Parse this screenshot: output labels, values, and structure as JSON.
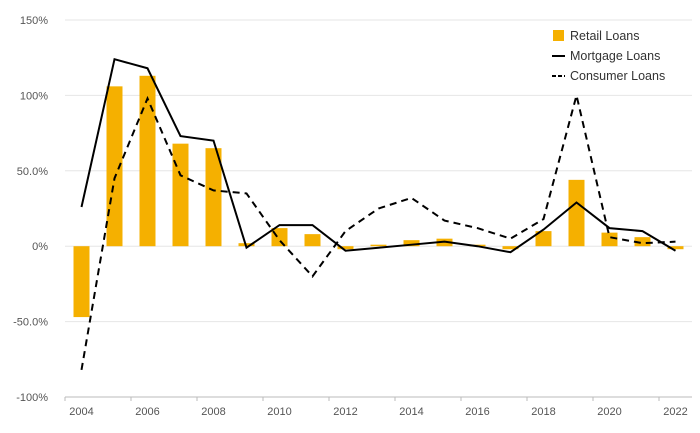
{
  "chart_data": {
    "type": "bar+line",
    "title": "",
    "xlabel": "",
    "ylabel": "",
    "ylim": [
      -100,
      150
    ],
    "y_ticks": [
      -100,
      -50,
      0,
      50,
      100,
      150
    ],
    "y_tick_labels": [
      "-100%",
      "-50.0%",
      "0%",
      "50.0%",
      "100%",
      "150%"
    ],
    "x": [
      2004,
      2005,
      2006,
      2007,
      2008,
      2009,
      2010,
      2011,
      2012,
      2013,
      2014,
      2015,
      2016,
      2017,
      2018,
      2019,
      2020,
      2021,
      2022
    ],
    "x_tick_labels": [
      "2004",
      "2006",
      "2008",
      "2010",
      "2012",
      "2014",
      "2016",
      "2018",
      "2020",
      "2022"
    ],
    "legend_position": "top-right",
    "series": [
      {
        "name": "Retail Loans",
        "kind": "bar",
        "color": "#f5b000",
        "values": [
          -47,
          106,
          113,
          68,
          65,
          2,
          12,
          8,
          -2,
          1,
          4,
          5,
          1,
          -2,
          10,
          44,
          9,
          6,
          -2
        ]
      },
      {
        "name": "Mortgage Loans",
        "kind": "line",
        "style": "solid",
        "color": "#000000",
        "values": [
          26,
          124,
          118,
          73,
          70,
          -1,
          14,
          14,
          -3,
          -1,
          1,
          3,
          0,
          -4,
          11,
          29,
          12,
          10,
          -3
        ]
      },
      {
        "name": "Consumer Loans",
        "kind": "line",
        "style": "dashed",
        "color": "#000000",
        "values": [
          -82,
          45,
          98,
          47,
          37,
          35,
          4,
          -20,
          10,
          25,
          32,
          17,
          12,
          5,
          18,
          100,
          6,
          2,
          3
        ]
      }
    ]
  }
}
